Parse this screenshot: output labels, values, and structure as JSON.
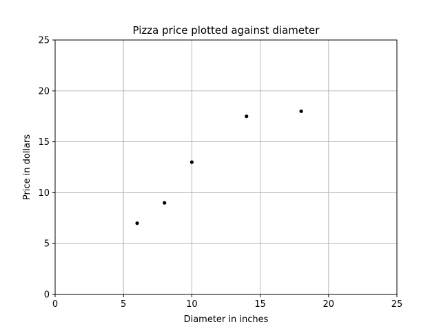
{
  "chart_data": {
    "type": "scatter",
    "title": "Pizza price plotted against diameter",
    "xlabel": "Diameter in inches",
    "ylabel": "Price in dollars",
    "xlim": [
      0,
      25
    ],
    "ylim": [
      0,
      25
    ],
    "xticks": [
      "0",
      "5",
      "10",
      "15",
      "20",
      "25"
    ],
    "yticks": [
      "0",
      "5",
      "10",
      "15",
      "20",
      "25"
    ],
    "grid": true,
    "legend": "none",
    "marker_color": "#000000",
    "points": [
      {
        "x": 6,
        "y": 7
      },
      {
        "x": 8,
        "y": 9
      },
      {
        "x": 10,
        "y": 13
      },
      {
        "x": 14,
        "y": 17.5
      },
      {
        "x": 18,
        "y": 18
      }
    ]
  }
}
